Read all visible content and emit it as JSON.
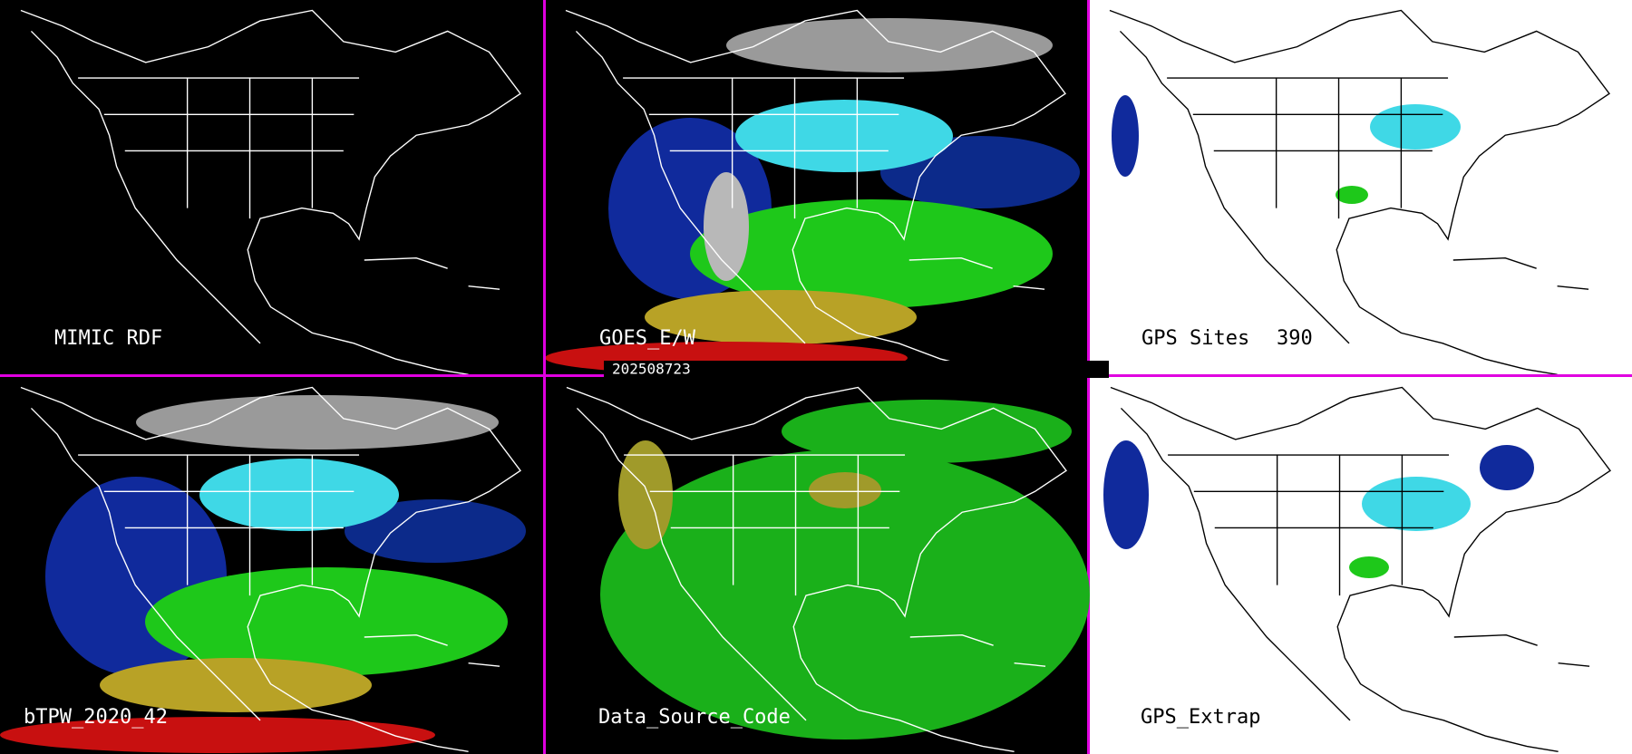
{
  "panels": [
    {
      "label": "MIMIC RDF"
    },
    {
      "label": "GOES_E/W"
    },
    {
      "label": "GPS Sites",
      "count": "390"
    },
    {
      "label": "bTPW_2020_42"
    },
    {
      "label": "Data_Source_Code"
    },
    {
      "label": "GPS_Extrap"
    }
  ],
  "timestamp": "202508723"
}
